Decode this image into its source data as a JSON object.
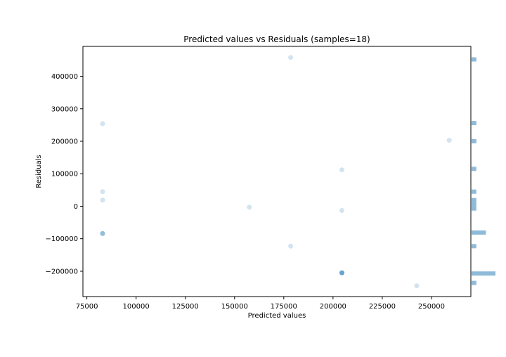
{
  "chart_data": {
    "type": "scatter",
    "title": "Predicted values vs Residuals (samples=18)",
    "xlabel": "Predicted values",
    "ylabel": "Residuals",
    "xlim": [
      73000,
      270000
    ],
    "ylim": [
      -278000,
      492000
    ],
    "x_ticks": [
      75000,
      100000,
      125000,
      150000,
      175000,
      200000,
      225000,
      250000
    ],
    "x_tick_labels": [
      "75000",
      "100000",
      "125000",
      "150000",
      "175000",
      "200000",
      "225000",
      "250000"
    ],
    "y_ticks": [
      -200000,
      -100000,
      0,
      100000,
      200000,
      300000,
      400000
    ],
    "y_tick_labels": [
      "−200000",
      "−100000",
      "0",
      "100000",
      "200000",
      "300000",
      "400000"
    ],
    "grid": false,
    "point_color": "#1f77b4",
    "point_alpha": 0.2,
    "points": [
      {
        "x": 178500,
        "y": 458000
      },
      {
        "x": 83000,
        "y": 254000
      },
      {
        "x": 259000,
        "y": 203000
      },
      {
        "x": 204500,
        "y": 112000
      },
      {
        "x": 83000,
        "y": 45000
      },
      {
        "x": 83000,
        "y": 19000
      },
      {
        "x": 157500,
        "y": -3000
      },
      {
        "x": 204500,
        "y": -13000
      },
      {
        "x": 83000,
        "y": -84000
      },
      {
        "x": 83000,
        "y": -84000
      },
      {
        "x": 83000,
        "y": -84000
      },
      {
        "x": 178500,
        "y": -123000
      },
      {
        "x": 204500,
        "y": -205000
      },
      {
        "x": 204500,
        "y": -205000
      },
      {
        "x": 204500,
        "y": -205000
      },
      {
        "x": 204500,
        "y": -205000
      },
      {
        "x": 204500,
        "y": -205000
      },
      {
        "x": 242500,
        "y": -245000
      }
    ],
    "marginal_histogram": {
      "orientation": "horizontal",
      "bar_color": "#1f77b4",
      "bar_alpha": 0.5,
      "bin_width": 13000,
      "bins": [
        {
          "center": 452000,
          "count": 1
        },
        {
          "center": 256000,
          "count": 1
        },
        {
          "center": 200000,
          "count": 1
        },
        {
          "center": 115000,
          "count": 1
        },
        {
          "center": 45000,
          "count": 1
        },
        {
          "center": 19000,
          "count": 1
        },
        {
          "center": 6000,
          "count": 1
        },
        {
          "center": -7000,
          "count": 1
        },
        {
          "center": -81000,
          "count": 3
        },
        {
          "center": -123000,
          "count": 1
        },
        {
          "center": -207000,
          "count": 5
        },
        {
          "center": -236000,
          "count": 1
        }
      ]
    }
  }
}
